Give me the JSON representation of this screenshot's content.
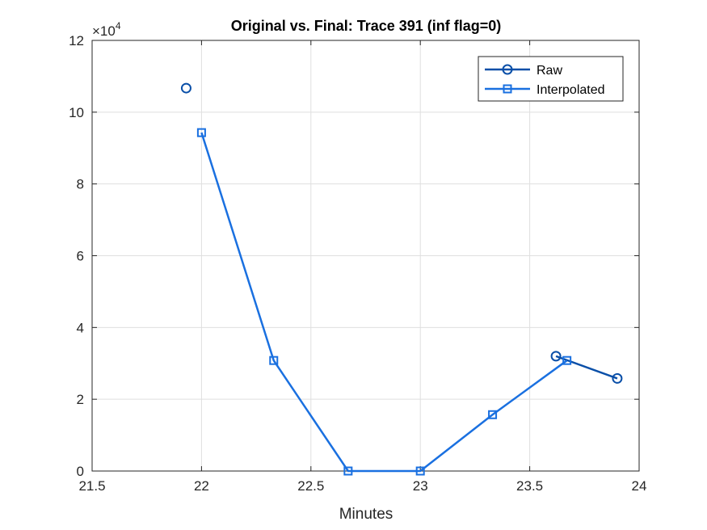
{
  "chart_data": {
    "type": "line",
    "title": "Original vs. Final: Trace 391 (inf flag=0)",
    "xlabel": "Minutes",
    "ylabel": "",
    "xlim": [
      21.5,
      24
    ],
    "ylim": [
      0,
      120000
    ],
    "xticks": [
      21.5,
      22,
      22.5,
      23,
      23.5,
      24
    ],
    "xtick_labels": [
      "21.5",
      "22",
      "22.5",
      "23",
      "23.5",
      "24"
    ],
    "yticks": [
      0,
      20000,
      40000,
      60000,
      80000,
      100000,
      120000
    ],
    "ytick_labels": [
      "0",
      "2",
      "4",
      "6",
      "8",
      "10",
      "12"
    ],
    "y_exponent_label": "×10",
    "y_exponent_power": "4",
    "grid": true,
    "legend_position": "top-right",
    "series": [
      {
        "name": "Raw",
        "marker": "circle",
        "color": "#0a4fa8",
        "points": [
          {
            "x": 21.93,
            "y": 106700,
            "connected": false
          },
          {
            "x": 23.62,
            "y": 32000,
            "connected": true
          },
          {
            "x": 23.9,
            "y": 25800,
            "connected": true
          }
        ]
      },
      {
        "name": "Interpolated",
        "marker": "square",
        "color": "#1a70e0",
        "points": [
          {
            "x": 22.0,
            "y": 94300
          },
          {
            "x": 22.33,
            "y": 30800
          },
          {
            "x": 22.67,
            "y": 0
          },
          {
            "x": 23.0,
            "y": 0
          },
          {
            "x": 23.33,
            "y": 15700
          },
          {
            "x": 23.67,
            "y": 30800
          }
        ]
      }
    ]
  }
}
